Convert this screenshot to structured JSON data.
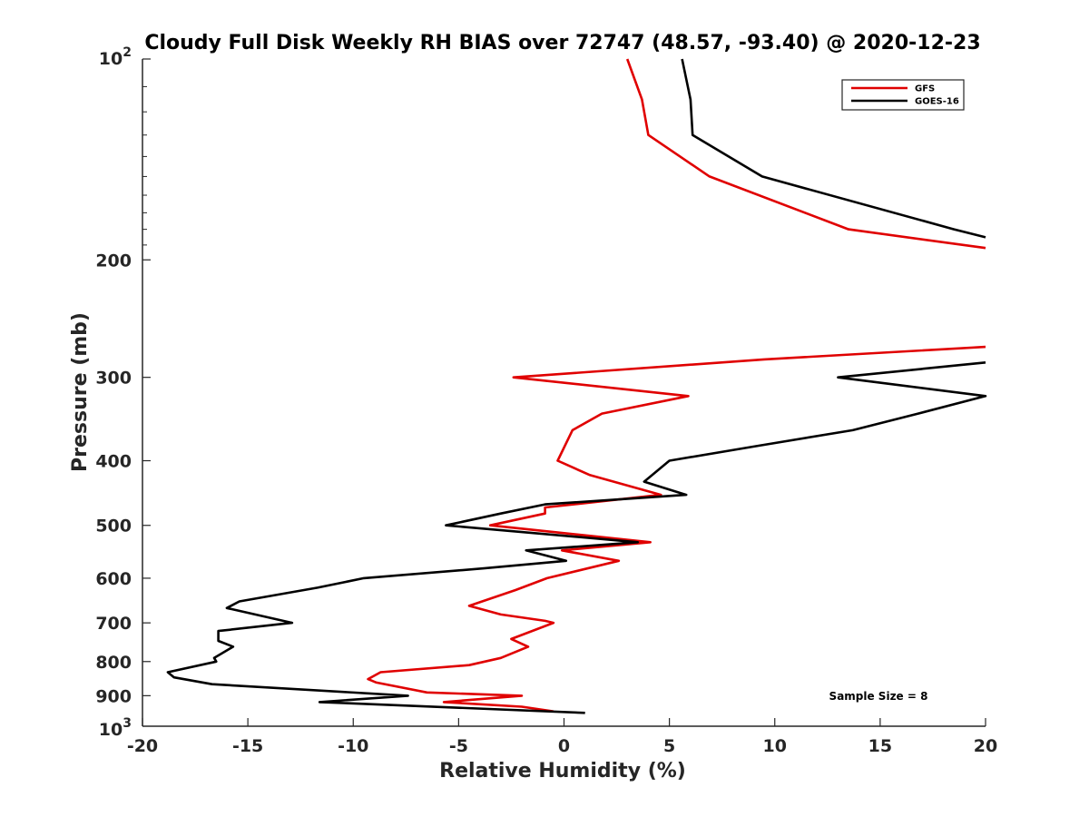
{
  "chart_data": {
    "type": "line",
    "title": "Cloudy Full Disk Weekly RH BIAS over 72747 (48.57, -93.40) @ 2020-12-23",
    "xlabel": "Relative Humidity (%)",
    "ylabel": "Pressure (mb)",
    "xlim": [
      -20,
      20
    ],
    "ylim": [
      100,
      1000
    ],
    "yscale": "log",
    "y_reversed": true,
    "xticks": [
      "-20",
      "-15",
      "-10",
      "-5",
      "0",
      "5",
      "10",
      "15",
      "20"
    ],
    "yticks": [
      {
        "value": 200,
        "label": "200"
      },
      {
        "value": 300,
        "label": "300"
      },
      {
        "value": 400,
        "label": "400"
      },
      {
        "value": 500,
        "label": "500"
      },
      {
        "value": 600,
        "label": "600"
      },
      {
        "value": 700,
        "label": "700"
      },
      {
        "value": 800,
        "label": "800"
      },
      {
        "value": 900,
        "label": "900"
      }
    ],
    "ytick_top": {
      "base": "10",
      "exp": "2"
    },
    "ytick_bottom": {
      "base": "10",
      "exp": "3"
    },
    "legend_position": "top-right",
    "annotation": "Sample Size = 8",
    "series": [
      {
        "name": "GFS",
        "color": "#e00000",
        "points": [
          [
            3.0,
            100
          ],
          [
            3.7,
            115
          ],
          [
            4.0,
            130
          ],
          [
            6.9,
            150
          ],
          [
            13.5,
            180
          ],
          [
            20,
            192
          ],
          [
            null,
            null
          ],
          [
            20,
            270
          ],
          [
            9.5,
            282
          ],
          [
            -2.4,
            300
          ],
          [
            5.9,
            320
          ],
          [
            1.8,
            340
          ],
          [
            0.4,
            360
          ],
          [
            -0.3,
            400
          ],
          [
            1.2,
            420
          ],
          [
            4.6,
            450
          ],
          [
            -0.9,
            470
          ],
          [
            -0.9,
            480
          ],
          [
            -3.5,
            500
          ],
          [
            4.1,
            530
          ],
          [
            -0.1,
            545
          ],
          [
            2.6,
            565
          ],
          [
            -0.8,
            600
          ],
          [
            -2.3,
            625
          ],
          [
            -4.5,
            660
          ],
          [
            -3.0,
            680
          ],
          [
            -0.9,
            695
          ],
          [
            -0.5,
            700
          ],
          [
            -2.5,
            740
          ],
          [
            -1.7,
            760
          ],
          [
            -3.0,
            790
          ],
          [
            -4.5,
            810
          ],
          [
            -8.7,
            830
          ],
          [
            -9.3,
            850
          ],
          [
            -8.9,
            860
          ],
          [
            -6.5,
            890
          ],
          [
            -2.0,
            900
          ],
          [
            -5.7,
            920
          ],
          [
            -2.0,
            935
          ],
          [
            -0.5,
            950
          ]
        ]
      },
      {
        "name": "GOES-16",
        "color": "#000000",
        "points": [
          [
            5.6,
            100
          ],
          [
            6.0,
            115
          ],
          [
            6.1,
            130
          ],
          [
            9.4,
            150
          ],
          [
            18.5,
            180
          ],
          [
            20,
            185
          ],
          [
            null,
            null
          ],
          [
            20,
            285
          ],
          [
            13.0,
            300
          ],
          [
            20,
            320
          ],
          [
            16.8,
            340
          ],
          [
            13.7,
            360
          ],
          [
            9.2,
            380
          ],
          [
            5.0,
            400
          ],
          [
            3.8,
            430
          ],
          [
            5.8,
            450
          ],
          [
            -0.9,
            465
          ],
          [
            -3.0,
            480
          ],
          [
            -5.6,
            500
          ],
          [
            3.5,
            530
          ],
          [
            -1.8,
            545
          ],
          [
            0.1,
            565
          ],
          [
            -3.8,
            580
          ],
          [
            -9.5,
            600
          ],
          [
            -11.7,
            620
          ],
          [
            -15.4,
            650
          ],
          [
            -16.0,
            665
          ],
          [
            -12.9,
            700
          ],
          [
            -16.4,
            720
          ],
          [
            -16.4,
            745
          ],
          [
            -15.7,
            760
          ],
          [
            -16.6,
            790
          ],
          [
            -16.5,
            800
          ],
          [
            -18.8,
            830
          ],
          [
            -18.5,
            845
          ],
          [
            -16.7,
            865
          ],
          [
            -7.4,
            900
          ],
          [
            -11.6,
            920
          ],
          [
            1.0,
            955
          ]
        ]
      }
    ]
  }
}
